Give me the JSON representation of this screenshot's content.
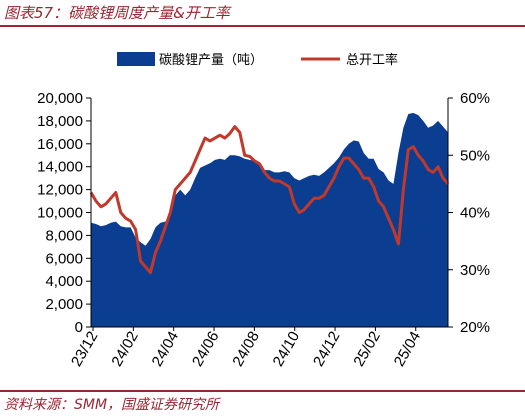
{
  "figure": {
    "title": "图表57：碳酸锂周度产量&开工率",
    "source": "资料来源：SMM，国盛证券研究所"
  },
  "colors": {
    "title": "#9b2532",
    "area": "#0b3d91",
    "line": "#c0392b"
  },
  "chart_data": {
    "type": "area",
    "x_tick_labels": [
      "23/12",
      "24/02",
      "24/04",
      "24/06",
      "24/08",
      "24/10",
      "24/12",
      "25/02",
      "25/04"
    ],
    "y_left": {
      "min": 0,
      "max": 20000,
      "step": 2000,
      "tick_labels": [
        "0",
        "2,000",
        "4,000",
        "6,000",
        "8,000",
        "10,000",
        "12,000",
        "14,000",
        "16,000",
        "18,000",
        "20,000"
      ]
    },
    "y_right": {
      "min": 20,
      "max": 60,
      "step": 10,
      "tick_labels": [
        "20%",
        "30%",
        "40%",
        "50%",
        "60%"
      ]
    },
    "legend": {
      "position": "top",
      "entries": [
        "碳酸锂产量（吨）",
        "总开工率"
      ]
    },
    "series": [
      {
        "name": "碳酸锂产量（吨）",
        "type": "area",
        "axis": "left",
        "values": [
          9100,
          9000,
          8800,
          8900,
          9100,
          9200,
          8800,
          8700,
          8700,
          7800,
          7400,
          7100,
          7700,
          8700,
          9100,
          9200,
          9900,
          11500,
          12000,
          11500,
          12000,
          13000,
          13900,
          14100,
          14300,
          14600,
          14700,
          14600,
          15000,
          15000,
          14900,
          14700,
          14600,
          14500,
          14200,
          13700,
          13700,
          13500,
          13500,
          13600,
          13500,
          13000,
          12800,
          13000,
          13200,
          13300,
          13200,
          13500,
          13900,
          14300,
          14800,
          15500,
          16000,
          16300,
          16200,
          15200,
          14700,
          14700,
          13800,
          13500,
          12800,
          12500,
          15200,
          17400,
          18600,
          18700,
          18500,
          18000,
          17400,
          17600,
          18000,
          17500,
          17000
        ]
      },
      {
        "name": "总开工率",
        "type": "line",
        "axis": "right",
        "values": [
          43.5,
          42.0,
          41.0,
          41.5,
          42.5,
          43.5,
          40.0,
          39.0,
          38.5,
          37.0,
          31.5,
          30.5,
          29.5,
          33.0,
          35.0,
          37.5,
          40.0,
          44.0,
          45.0,
          46.0,
          47.0,
          49.0,
          51.0,
          53.0,
          52.5,
          53.0,
          53.5,
          53.0,
          53.8,
          55.0,
          54.0,
          50.0,
          49.8,
          49.0,
          48.5,
          47.0,
          46.0,
          45.5,
          45.5,
          45.0,
          44.5,
          41.5,
          40.0,
          40.5,
          41.5,
          42.5,
          42.5,
          43.0,
          44.5,
          46.0,
          48.0,
          49.5,
          49.5,
          48.5,
          47.5,
          46.0,
          46.0,
          44.5,
          42.0,
          41.0,
          39.0,
          37.0,
          34.5,
          44.0,
          51.0,
          51.5,
          50.0,
          49.0,
          47.5,
          47.0,
          48.0,
          46.0,
          45.0
        ]
      }
    ]
  }
}
